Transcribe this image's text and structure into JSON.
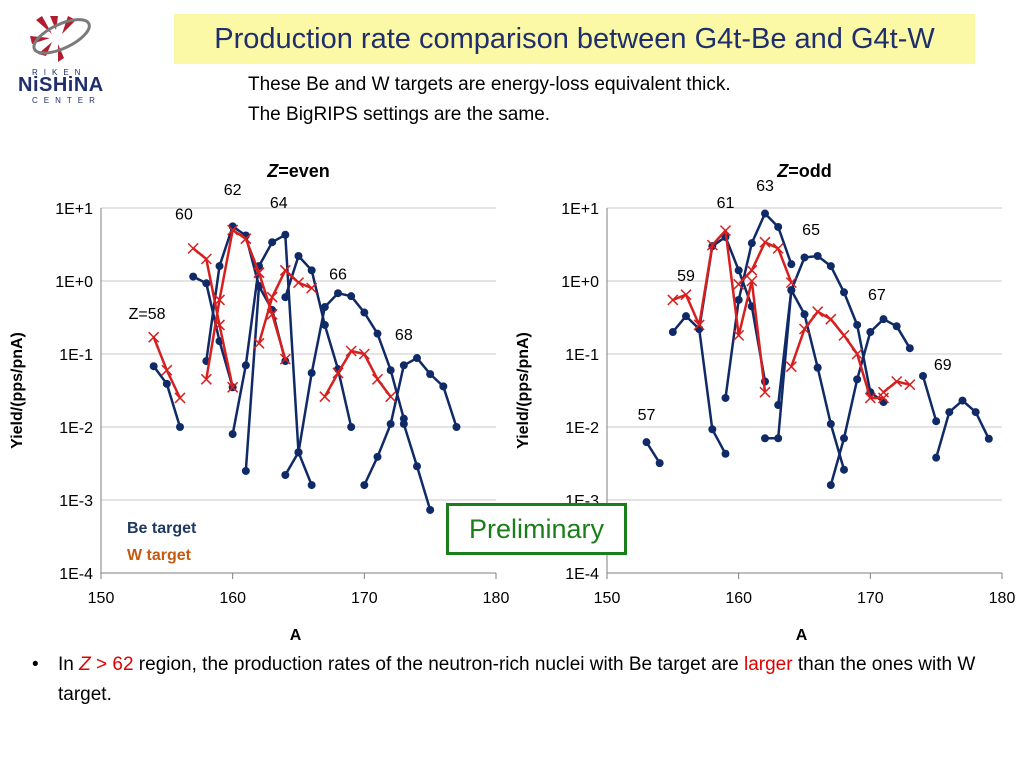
{
  "logo": {
    "top": "RIKEN",
    "main": "NiSHiNA",
    "bottom": "CENTER"
  },
  "title": "Production rate comparison between G4t-Be and G4t-W",
  "subtitle": [
    "These Be and W targets are energy-loss equivalent thick.",
    "The BigRIPS settings are the same."
  ],
  "preliminary": "Preliminary",
  "bullet": {
    "marker": "•",
    "pre": "In ",
    "z": "Z",
    "cond": " > 62",
    "mid": " region, the production rates of the neutron-rich nuclei with Be target are ",
    "highlight": "larger",
    "post": " than the ones with W target."
  },
  "colors": {
    "be": "#0f2a66",
    "w": "#d62020",
    "be_legend": "#1f3a60",
    "w_legend": "#c55a11"
  },
  "legend": {
    "be": "Be target",
    "w": "W target"
  },
  "chart_data": [
    {
      "type": "line",
      "title_italic": "Z",
      "title": "=even",
      "xlabel": "A",
      "ylabel": "Yield/(pps/pnA)",
      "xlim": [
        150,
        180
      ],
      "xticks": [
        "150",
        "160",
        "170",
        "180"
      ],
      "ylim_log10": [
        -4,
        1
      ],
      "yticks": [
        "1E-4",
        "1E-3",
        "1E-2",
        "1E-1",
        "1E+0",
        "1E+1"
      ],
      "grid": "horizontal",
      "series": [
        {
          "target": "be",
          "x": [
            154,
            155,
            156
          ],
          "y": [
            0.068,
            0.039,
            0.01
          ]
        },
        {
          "target": "be",
          "x": [
            157,
            158,
            159,
            160
          ],
          "y": [
            1.15,
            0.93,
            0.15,
            0.035
          ]
        },
        {
          "target": "be",
          "x": [
            158,
            159,
            160,
            161,
            162
          ],
          "y": [
            0.08,
            1.6,
            5.6,
            4.2,
            0.85
          ]
        },
        {
          "target": "be",
          "x": [
            160,
            161,
            162,
            163,
            164,
            165
          ],
          "y": [
            0.008,
            0.07,
            1.6,
            3.4,
            4.3,
            0.0045
          ]
        },
        {
          "target": "be",
          "x": [
            161,
            162,
            163,
            164
          ],
          "y": [
            0.0025,
            0.85,
            0.4,
            0.08
          ]
        },
        {
          "target": "be",
          "x": [
            164,
            165,
            166,
            167,
            168,
            169,
            170,
            171,
            172,
            173
          ],
          "y": [
            0.0022,
            0.0045,
            0.055,
            0.44,
            0.68,
            0.62,
            0.37,
            0.19,
            0.06,
            0.013
          ]
        },
        {
          "target": "be",
          "x": [
            164,
            165,
            166,
            167,
            168,
            169
          ],
          "y": [
            0.6,
            2.2,
            1.4,
            0.25,
            0.062,
            0.01
          ]
        },
        {
          "target": "be",
          "x": [
            165,
            166
          ],
          "y": [
            0.0045,
            0.0016
          ]
        },
        {
          "target": "be",
          "x": [
            170,
            171,
            172,
            173,
            174,
            175,
            176,
            177
          ],
          "y": [
            0.0016,
            0.0039,
            0.011,
            0.07,
            0.088,
            0.053,
            0.036,
            0.01
          ]
        },
        {
          "target": "be",
          "x": [
            173,
            174,
            175
          ],
          "y": [
            0.011,
            0.0029,
            0.00073
          ]
        },
        {
          "target": "w",
          "x": [
            154,
            155,
            156
          ],
          "y": [
            0.17,
            0.06,
            0.025
          ]
        },
        {
          "target": "w",
          "x": [
            157,
            158,
            159,
            160
          ],
          "y": [
            2.8,
            2.0,
            0.25,
            0.035
          ]
        },
        {
          "target": "w",
          "x": [
            158,
            159,
            160,
            161,
            162
          ],
          "y": [
            0.045,
            0.55,
            5.0,
            3.8,
            1.3
          ]
        },
        {
          "target": "w",
          "x": [
            162,
            163,
            164,
            165,
            166
          ],
          "y": [
            0.14,
            0.6,
            1.4,
            0.95,
            0.8
          ]
        },
        {
          "target": "w",
          "x": [
            162,
            163,
            164
          ],
          "y": [
            1.3,
            0.35,
            0.085
          ]
        },
        {
          "target": "w",
          "x": [
            167,
            168,
            169,
            170,
            171,
            172
          ],
          "y": [
            0.026,
            0.055,
            0.11,
            0.1,
            0.045,
            0.026
          ]
        }
      ],
      "labels": [
        {
          "text": "Z=58",
          "x": 153.5,
          "y": 0.3
        },
        {
          "text": "60",
          "x": 156.3,
          "y": 7.0
        },
        {
          "text": "62",
          "x": 160.0,
          "y": 15.0
        },
        {
          "text": "64",
          "x": 163.5,
          "y": 10.0
        },
        {
          "text": "66",
          "x": 168.0,
          "y": 1.05
        },
        {
          "text": "68",
          "x": 173.0,
          "y": 0.155
        }
      ]
    },
    {
      "type": "line",
      "title_italic": "Z",
      "title": "=odd",
      "xlabel": "A",
      "ylabel": "Yield/(pps/pnA)",
      "xlim": [
        150,
        180
      ],
      "xticks": [
        "150",
        "160",
        "170",
        "180"
      ],
      "ylim_log10": [
        -4,
        1
      ],
      "yticks": [
        "1E-4",
        "1E-3",
        "1E-2",
        "1E-1",
        "1E+0",
        "1E+1"
      ],
      "grid": "horizontal",
      "series": [
        {
          "target": "be",
          "x": [
            153,
            154
          ],
          "y": [
            0.0062,
            0.0032
          ]
        },
        {
          "target": "be",
          "x": [
            155,
            156,
            157,
            158,
            159
          ],
          "y": [
            0.2,
            0.33,
            0.22,
            0.0093,
            0.0043
          ]
        },
        {
          "target": "be",
          "x": [
            157,
            158,
            159,
            160,
            161
          ],
          "y": [
            0.22,
            3.0,
            4.0,
            1.4,
            0.45
          ]
        },
        {
          "target": "be",
          "x": [
            159,
            160,
            161,
            162,
            163,
            164
          ],
          "y": [
            0.025,
            0.55,
            3.3,
            8.4,
            5.5,
            1.7
          ]
        },
        {
          "target": "be",
          "x": [
            162,
            163,
            164,
            165,
            166,
            167,
            168,
            169,
            170,
            171
          ],
          "y": [
            0.007,
            0.007,
            0.75,
            2.1,
            2.2,
            1.6,
            0.7,
            0.25,
            0.03,
            0.022
          ]
        },
        {
          "target": "be",
          "x": [
            161,
            162
          ],
          "y": [
            0.45,
            0.042
          ]
        },
        {
          "target": "be",
          "x": [
            163,
            164,
            165,
            166
          ],
          "y": [
            0.02,
            0.75,
            0.35,
            0.065
          ]
        },
        {
          "target": "be",
          "x": [
            166,
            167,
            168
          ],
          "y": [
            0.065,
            0.011,
            0.0026
          ]
        },
        {
          "target": "be",
          "x": [
            167,
            168,
            169,
            170,
            171,
            172,
            173
          ],
          "y": [
            0.0016,
            0.007,
            0.045,
            0.2,
            0.3,
            0.24,
            0.12
          ]
        },
        {
          "target": "be",
          "x": [
            175,
            176,
            177,
            178,
            179
          ],
          "y": [
            0.0038,
            0.016,
            0.023,
            0.016,
            0.0069
          ]
        },
        {
          "target": "be",
          "x": [
            174,
            175
          ],
          "y": [
            0.05,
            0.012
          ]
        },
        {
          "target": "w",
          "x": [
            155,
            156,
            157,
            158,
            159,
            160,
            161,
            162
          ],
          "y": [
            0.55,
            0.65,
            0.25,
            3.1,
            4.9,
            0.18,
            1.0,
            0.03
          ]
        },
        {
          "target": "w",
          "x": [
            160,
            161,
            162,
            163,
            164
          ],
          "y": [
            0.9,
            1.4,
            3.4,
            2.8,
            0.95
          ]
        },
        {
          "target": "w",
          "x": [
            164,
            165,
            166,
            167,
            168,
            169,
            170,
            171
          ],
          "y": [
            0.067,
            0.22,
            0.38,
            0.3,
            0.18,
            0.1,
            0.025,
            0.025
          ]
        },
        {
          "target": "w",
          "x": [
            171,
            172,
            173
          ],
          "y": [
            0.03,
            0.042,
            0.038
          ]
        }
      ],
      "labels": [
        {
          "text": "57",
          "x": 153.0,
          "y": 0.0125
        },
        {
          "text": "59",
          "x": 156.0,
          "y": 1.0
        },
        {
          "text": "61",
          "x": 159.0,
          "y": 10.0
        },
        {
          "text": "63",
          "x": 162.0,
          "y": 17.0
        },
        {
          "text": "65",
          "x": 165.5,
          "y": 4.3
        },
        {
          "text": "67",
          "x": 170.5,
          "y": 0.55
        },
        {
          "text": "69",
          "x": 175.5,
          "y": 0.06
        }
      ]
    }
  ]
}
